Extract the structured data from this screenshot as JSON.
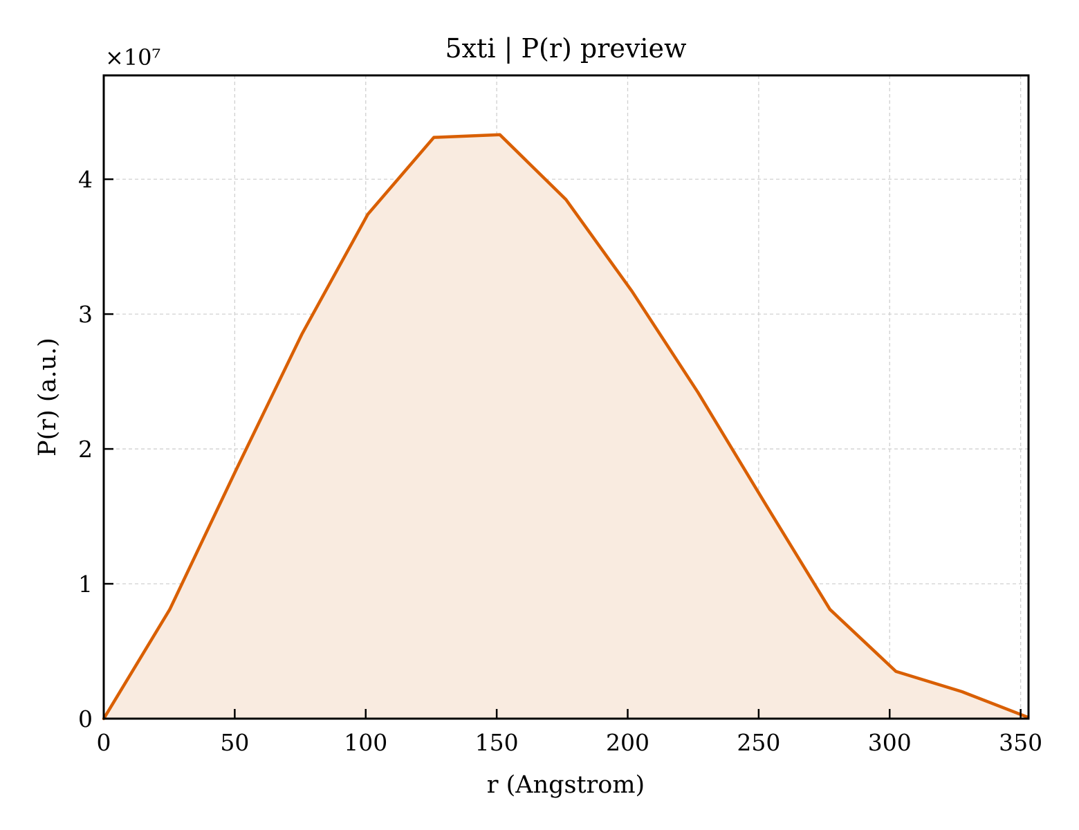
{
  "chart_data": {
    "type": "area",
    "title": "5xti | P(r) preview",
    "xlabel": "r (Angstrom)",
    "ylabel": "P(r) (a.u.)",
    "y_offset_label": "×10⁷",
    "y_multiplier": 10000000,
    "xlim": [
      0,
      353
    ],
    "ylim": [
      0,
      4.77
    ],
    "xticks": [
      0,
      50,
      100,
      150,
      200,
      250,
      300,
      350
    ],
    "yticks": [
      0,
      1,
      2,
      3,
      4
    ],
    "grid": true,
    "line_color": "#d95f02",
    "fill_color": "#f9ebe0",
    "x": [
      0,
      25.2,
      50.4,
      75.6,
      100.8,
      126,
      151.2,
      176.4,
      201.6,
      226.8,
      252,
      277.2,
      302.4,
      327.6,
      352.8
    ],
    "y": [
      0,
      0.81,
      1.84,
      2.85,
      3.74,
      4.31,
      4.33,
      3.85,
      3.17,
      2.42,
      1.61,
      0.81,
      0.35,
      0.2,
      0.01
    ]
  }
}
